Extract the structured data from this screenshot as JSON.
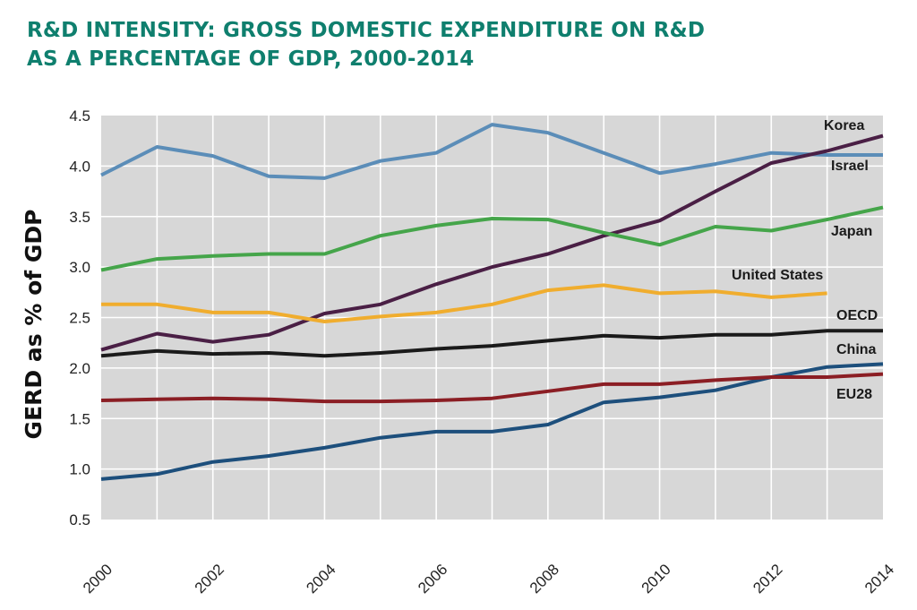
{
  "chart_data": {
    "type": "line",
    "title_line1": "R&D INTENSITY: GROSS DOMESTIC EXPENDITURE ON R&D",
    "title_line2": "AS A PERCENTAGE OF GDP, 2000-2014",
    "ylabel": "GERD as % of GDP",
    "xlabel": "",
    "ylim": [
      0.5,
      4.5
    ],
    "xlim": [
      2000,
      2014
    ],
    "yticks": [
      "0.5",
      "1.0",
      "1.5",
      "2.0",
      "2.5",
      "3.0",
      "3.5",
      "4.0",
      "4.5"
    ],
    "xticks": [
      "2000",
      "2002",
      "2004",
      "2006",
      "2008",
      "2010",
      "2012",
      "2014"
    ],
    "grid": true,
    "x": [
      2000,
      2001,
      2002,
      2003,
      2004,
      2005,
      2006,
      2007,
      2008,
      2009,
      2010,
      2011,
      2012,
      2013,
      2014
    ],
    "series": [
      {
        "name": "Israel",
        "color": "#5b8db8",
        "values": [
          3.91,
          4.19,
          4.1,
          3.9,
          3.88,
          4.05,
          4.13,
          4.41,
          4.33,
          4.13,
          3.93,
          4.02,
          4.13,
          4.11,
          4.11
        ]
      },
      {
        "name": "Korea",
        "color": "#4a1f45",
        "values": [
          2.18,
          2.34,
          2.26,
          2.33,
          2.54,
          2.63,
          2.83,
          3.0,
          3.13,
          3.31,
          3.46,
          3.75,
          4.03,
          4.15,
          4.3
        ]
      },
      {
        "name": "Japan",
        "color": "#45a54a",
        "values": [
          2.97,
          3.08,
          3.11,
          3.13,
          3.13,
          3.31,
          3.41,
          3.48,
          3.47,
          3.34,
          3.22,
          3.4,
          3.36,
          3.47,
          3.59
        ]
      },
      {
        "name": "United States",
        "color": "#f0ad2e",
        "values": [
          2.63,
          2.63,
          2.55,
          2.55,
          2.46,
          2.51,
          2.55,
          2.63,
          2.77,
          2.82,
          2.74,
          2.76,
          2.7,
          2.74,
          null
        ]
      },
      {
        "name": "OECD",
        "color": "#1a1a1a",
        "values": [
          2.12,
          2.17,
          2.14,
          2.15,
          2.12,
          2.15,
          2.19,
          2.22,
          2.27,
          2.32,
          2.3,
          2.33,
          2.33,
          2.37,
          2.37
        ]
      },
      {
        "name": "China",
        "color": "#1d4f7c",
        "values": [
          0.9,
          0.95,
          1.07,
          1.13,
          1.21,
          1.31,
          1.37,
          1.37,
          1.44,
          1.66,
          1.71,
          1.78,
          1.91,
          2.01,
          2.04
        ]
      },
      {
        "name": "EU28",
        "color": "#8b1e24",
        "values": [
          1.68,
          1.69,
          1.7,
          1.69,
          1.67,
          1.67,
          1.68,
          1.7,
          1.77,
          1.84,
          1.84,
          1.88,
          1.91,
          1.91,
          1.94
        ]
      }
    ]
  }
}
